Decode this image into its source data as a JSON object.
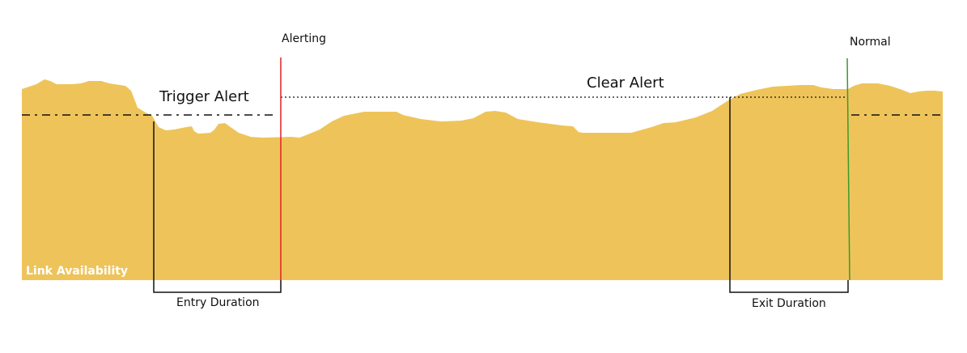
{
  "labels": {
    "alerting": "Alerting",
    "normal": "Normal",
    "trigger_alert": "Trigger Alert",
    "clear_alert": "Clear Alert",
    "entry_duration": "Entry Duration",
    "exit_duration": "Exit Duration",
    "series": "Link Availability"
  },
  "colors": {
    "area": "#EEC45A",
    "alerting_line": "#E02020",
    "normal_line": "#3A9A2A",
    "threshold": "#111111"
  }
}
